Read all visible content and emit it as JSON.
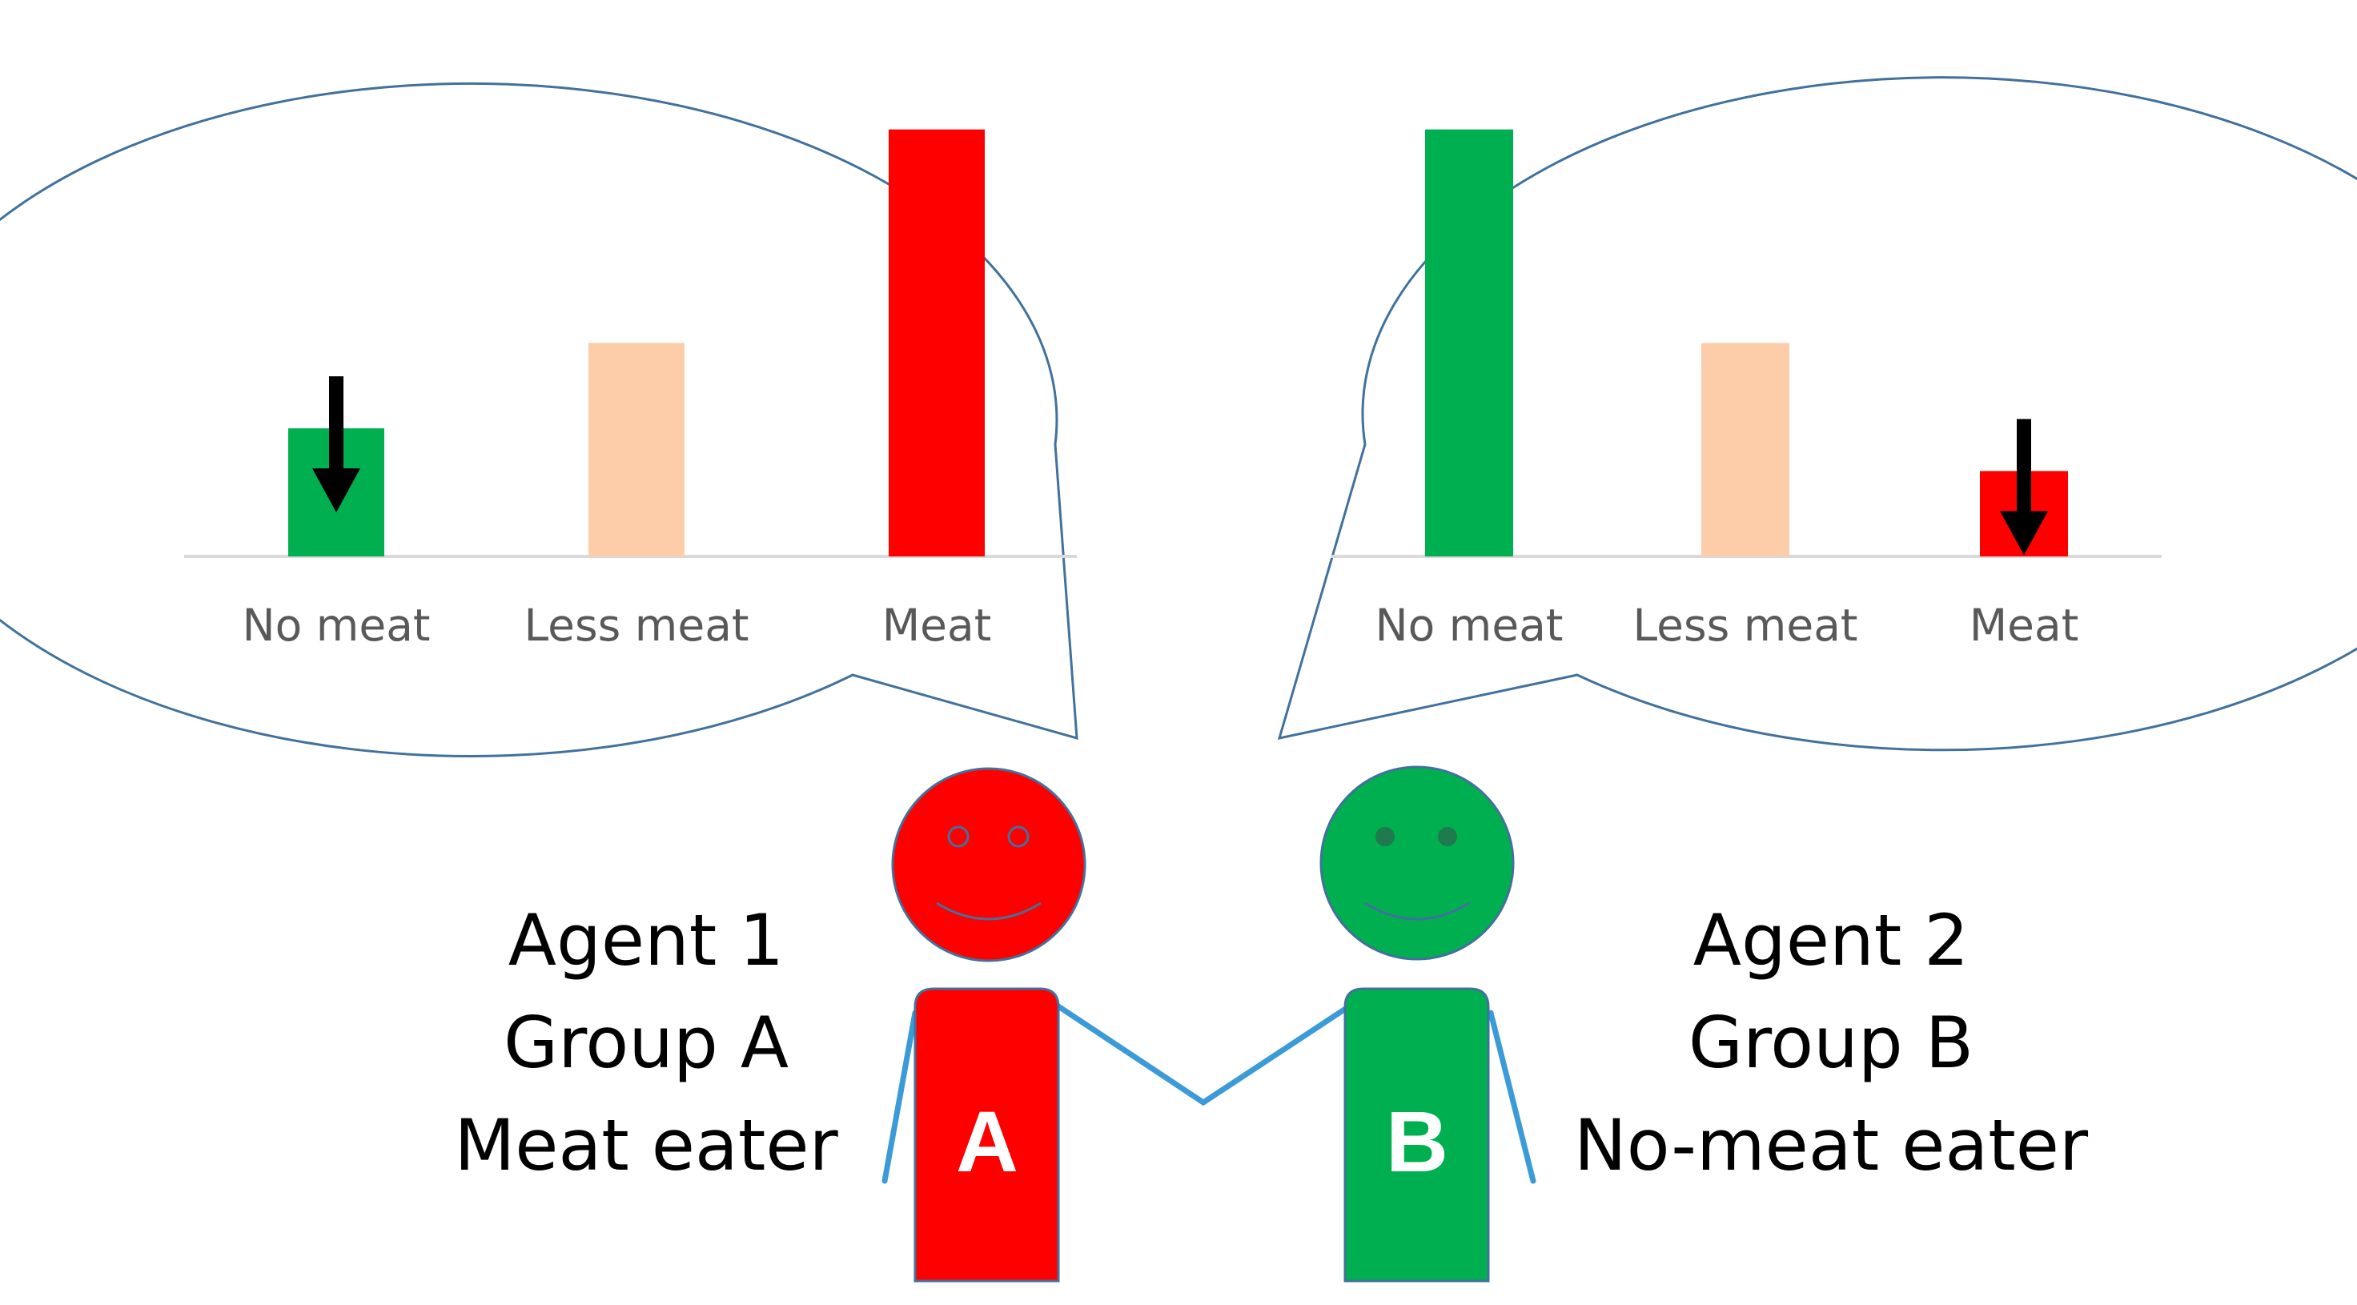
{
  "colors": {
    "no_meat": "#00b050",
    "less_meat": "#fdcca9",
    "meat": "#ff0000",
    "bubble_stroke": "#41719c",
    "arm": "#3a9bd8",
    "arrow": "#000000"
  },
  "chart_data": [
    {
      "type": "bar",
      "owner": "Agent 1",
      "categories": [
        "No meat",
        "Less meat",
        "Meat"
      ],
      "values": [
        30,
        50,
        100
      ],
      "colors": [
        "#00b050",
        "#fdcca9",
        "#ff0000"
      ],
      "ylim": [
        0,
        105
      ],
      "arrow_on_category": "No meat",
      "arrow_direction": "down"
    },
    {
      "type": "bar",
      "owner": "Agent 2",
      "categories": [
        "No meat",
        "Less meat",
        "Meat"
      ],
      "values": [
        100,
        50,
        20
      ],
      "colors": [
        "#00b050",
        "#fdcca9",
        "#ff0000"
      ],
      "ylim": [
        0,
        105
      ],
      "arrow_on_category": "Meat",
      "arrow_direction": "down"
    }
  ],
  "agents": [
    {
      "line1": "Agent 1",
      "line2": "Group A",
      "line3": "Meat eater",
      "letter": "A",
      "color": "#ff0000",
      "face": "smiley"
    },
    {
      "line1": "Agent 2",
      "line2": "Group B",
      "line3": "No-meat eater",
      "letter": "B",
      "color": "#00b050",
      "face": "smiley"
    }
  ]
}
